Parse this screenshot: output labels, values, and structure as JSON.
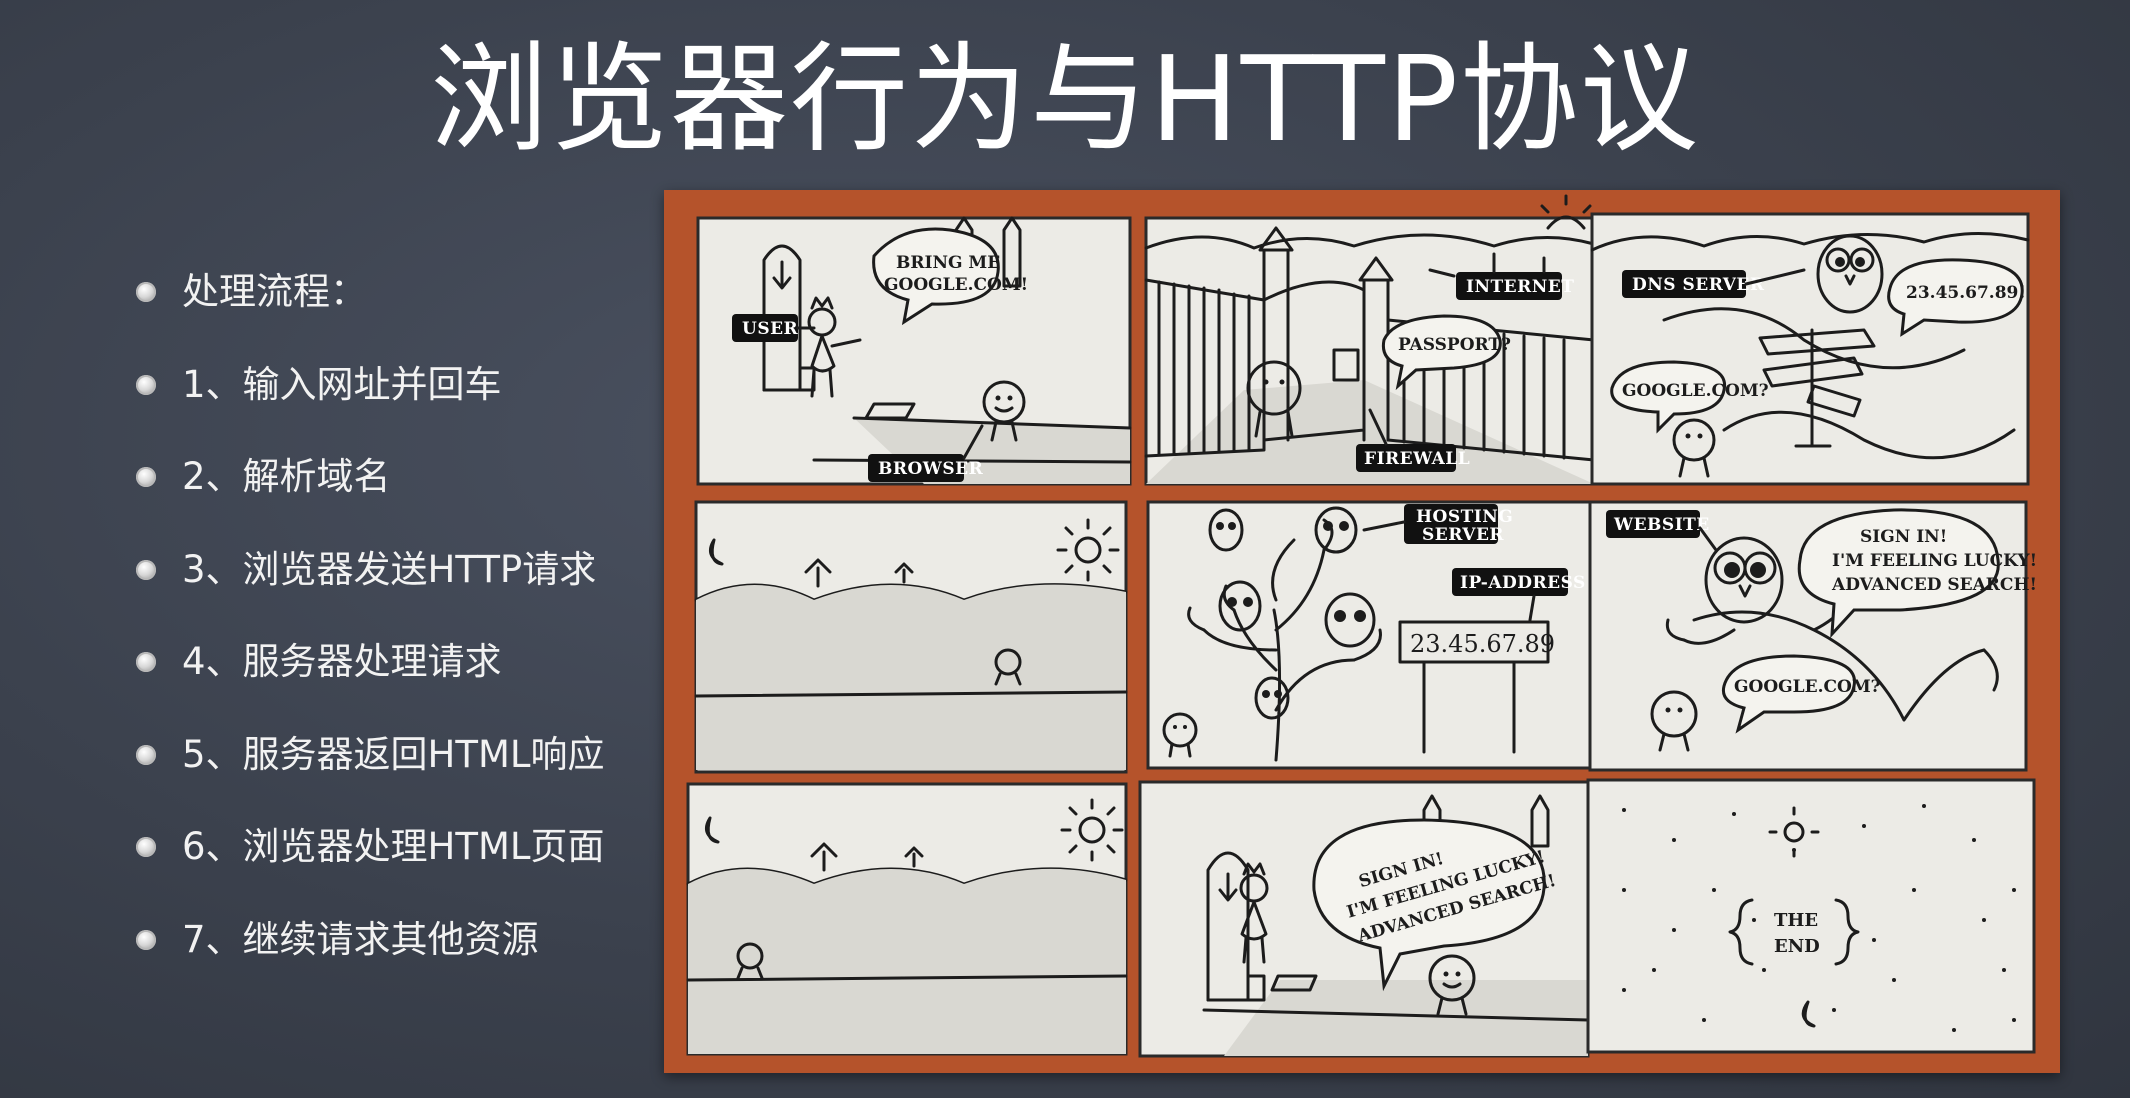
{
  "slide": {
    "title": "浏览器行为与HTTP协议"
  },
  "bullets": [
    "处理流程：",
    "1、输入网址并回车",
    "2、解析域名",
    "3、浏览器发送HTTP请求",
    "4、服务器处理请求",
    "5、服务器返回HTML响应",
    "6、浏览器处理HTML页面",
    "7、继续请求其他资源"
  ],
  "comic": {
    "panel1": {
      "user": "USER",
      "browser": "BROWSER",
      "bubble_line1": "BRING ME",
      "bubble_line2": "GOOGLE.COM!"
    },
    "panel2": {
      "internet": "INTERNET",
      "firewall": "FIREWALL",
      "bubble": "PASSPORT?"
    },
    "panel3": {
      "dns": "DNS SERVER",
      "bubble_ip": "23.45.67.89!",
      "bubble_q": "GOOGLE.COM?"
    },
    "panel5": {
      "hosting_line1": "HOSTING",
      "hosting_line2": "SERVER",
      "ip_label": "IP-ADDRESS",
      "sign": "23.45.67.89"
    },
    "panel6": {
      "website": "WEBSITE",
      "line1": "SIGN IN!",
      "line2": "I'M FEELING LUCKY!",
      "line3": "ADVANCED SEARCH!",
      "bubble_q": "GOOGLE.COM?"
    },
    "panel8": {
      "line1": "SIGN IN!",
      "line2": "I'M FEELING LUCKY!",
      "line3": "ADVANCED SEARCH!"
    },
    "panel9": {
      "the": "THE",
      "end": "END"
    }
  }
}
